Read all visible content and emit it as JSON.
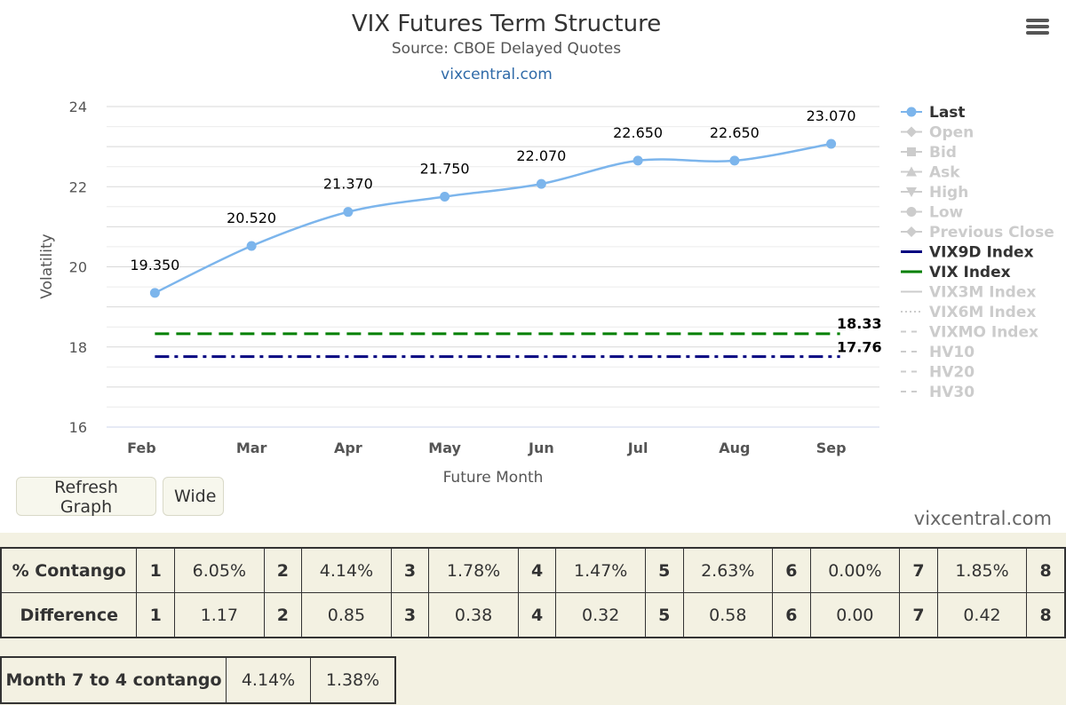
{
  "chart_data": {
    "type": "line",
    "title": "VIX Futures Term Structure",
    "subtitle": "Source: CBOE Delayed Quotes",
    "source_link": "vixcentral.com",
    "xlabel": "Future Month",
    "ylabel": "Volatility",
    "categories": [
      "Feb",
      "Mar",
      "Apr",
      "May",
      "Jun",
      "Jul",
      "Aug",
      "Sep"
    ],
    "ylim": [
      16,
      24
    ],
    "yticks": [
      "16",
      "18",
      "20",
      "22",
      "24"
    ],
    "grid": true,
    "legend_position": "right",
    "series": [
      {
        "name": "Last",
        "values": [
          19.35,
          20.52,
          21.37,
          21.75,
          22.07,
          22.65,
          22.65,
          23.07
        ],
        "labels": [
          "19.350",
          "20.520",
          "21.370",
          "21.750",
          "22.070",
          "22.650",
          "22.650",
          "23.070"
        ],
        "color": "#7cb5ec"
      },
      {
        "name": "VIX9D Index",
        "value": 17.76,
        "label": "17.76",
        "color": "#000080",
        "style": "dash-dot"
      },
      {
        "name": "VIX Index",
        "value": 18.33,
        "label": "18.33",
        "color": "#008000",
        "style": "dash"
      }
    ],
    "legend": [
      {
        "name": "Last",
        "active": true,
        "marker": "circle",
        "color": "#7cb5ec"
      },
      {
        "name": "Open",
        "active": false,
        "marker": "diamond"
      },
      {
        "name": "Bid",
        "active": false,
        "marker": "square"
      },
      {
        "name": "Ask",
        "active": false,
        "marker": "triangle"
      },
      {
        "name": "High",
        "active": false,
        "marker": "triangle-down"
      },
      {
        "name": "Low",
        "active": false,
        "marker": "circle"
      },
      {
        "name": "Previous Close",
        "active": false,
        "marker": "diamond"
      },
      {
        "name": "VIX9D Index",
        "active": true,
        "marker": "line",
        "color": "#000080"
      },
      {
        "name": "VIX Index",
        "active": true,
        "marker": "line",
        "color": "#008000"
      },
      {
        "name": "VIX3M Index",
        "active": false,
        "marker": "line"
      },
      {
        "name": "VIX6M Index",
        "active": false,
        "marker": "dotted"
      },
      {
        "name": "VIXMO Index",
        "active": false,
        "marker": "dash"
      },
      {
        "name": "HV10",
        "active": false,
        "marker": "dash"
      },
      {
        "name": "HV20",
        "active": false,
        "marker": "dash"
      },
      {
        "name": "HV30",
        "active": false,
        "marker": "dash"
      }
    ]
  },
  "colors": {
    "accent": "#7cb5ec",
    "vix9d": "#000080",
    "vix": "#008000",
    "inactive": "#cccccc",
    "panel_bg": "#f3f1e2"
  },
  "toolbar": {
    "refresh_label": "Refresh Graph",
    "wide_label": "Wide",
    "menu_icon": "hamburger-menu-icon"
  },
  "credit": "vixcentral.com",
  "contango_table": {
    "rows": [
      {
        "label": "% Contango",
        "cells": [
          {
            "n": "1",
            "v": "6.05%"
          },
          {
            "n": "2",
            "v": "4.14%"
          },
          {
            "n": "3",
            "v": "1.78%"
          },
          {
            "n": "4",
            "v": "1.47%"
          },
          {
            "n": "5",
            "v": "2.63%"
          },
          {
            "n": "6",
            "v": "0.00%"
          },
          {
            "n": "7",
            "v": "1.85%"
          },
          {
            "n": "8",
            "v": ""
          }
        ]
      },
      {
        "label": "Difference",
        "cells": [
          {
            "n": "1",
            "v": "1.17"
          },
          {
            "n": "2",
            "v": "0.85"
          },
          {
            "n": "3",
            "v": "0.38"
          },
          {
            "n": "4",
            "v": "0.32"
          },
          {
            "n": "5",
            "v": "0.58"
          },
          {
            "n": "6",
            "v": "0.00"
          },
          {
            "n": "7",
            "v": "0.42"
          },
          {
            "n": "8",
            "v": ""
          }
        ]
      }
    ]
  },
  "summary_table": {
    "label": "Month 7 to 4 contango",
    "value1": "4.14%",
    "value2": "1.38%"
  }
}
